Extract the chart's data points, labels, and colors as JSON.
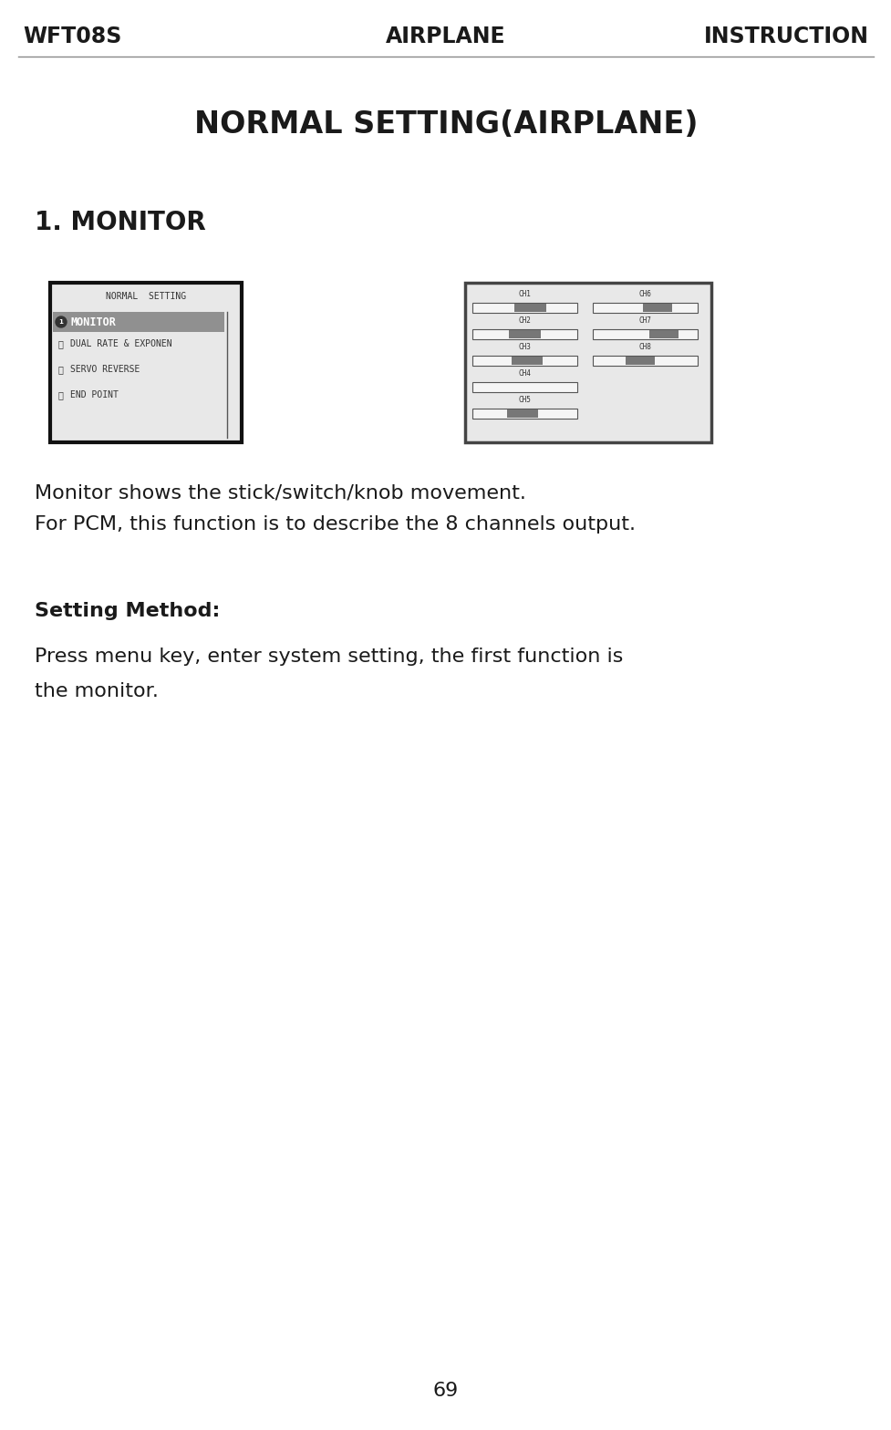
{
  "bg_color": "#ffffff",
  "header_left": "WFT08S",
  "header_center": "AIRPLANE",
  "header_right": "INSTRUCTION",
  "header_font_size": 17,
  "page_title": "NORMAL SETTING(AIRPLANE)",
  "page_title_fontsize": 24,
  "section_title": "1. MONITOR",
  "section_title_fontsize": 20,
  "desc_line1": "Monitor shows the stick/switch/knob movement.",
  "desc_line2": "For PCM, this function is to describe the 8 channels output.",
  "desc_fontsize": 16,
  "setting_method_label": "Setting Method:",
  "setting_method_fontsize": 16,
  "press_line1": "Press menu key, enter system setting, the first function is",
  "press_line2": "the monitor.",
  "press_fontsize": 16,
  "page_number": "69",
  "text_color": "#1a1a1a"
}
